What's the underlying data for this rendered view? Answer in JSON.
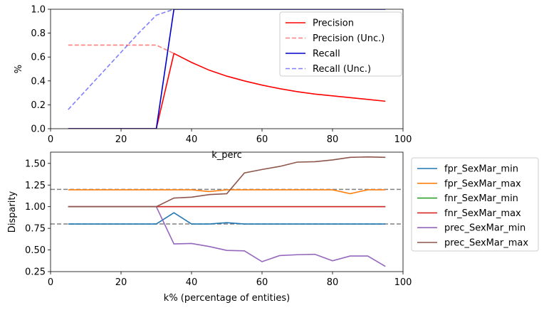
{
  "chart_data": [
    {
      "type": "line",
      "xlabel": "k_perc",
      "ylabel": "%",
      "xlim": [
        0,
        100
      ],
      "ylim": [
        0,
        1.0
      ],
      "xticks": [
        "0",
        "20",
        "40",
        "60",
        "80",
        "100"
      ],
      "yticks": [
        "0.0",
        "0.2",
        "0.4",
        "0.6",
        "0.8",
        "1.0"
      ],
      "legend_position": "top-right",
      "x": [
        5,
        10,
        15,
        20,
        25,
        30,
        35,
        40,
        45,
        50,
        55,
        60,
        65,
        70,
        75,
        80,
        85,
        90,
        95
      ],
      "series": [
        {
          "name": "Precision",
          "color": "#ff0000",
          "dashed": false,
          "opacity": 1,
          "values": [
            0,
            0,
            0,
            0,
            0,
            0,
            0.63,
            0.555,
            0.49,
            0.44,
            0.4,
            0.365,
            0.335,
            0.31,
            0.29,
            0.275,
            0.26,
            0.245,
            0.23
          ]
        },
        {
          "name": "Precision (Unc.)",
          "color": "#ff0000",
          "dashed": true,
          "opacity": 0.5,
          "values": [
            0.7,
            0.7,
            0.7,
            0.7,
            0.7,
            0.7,
            0.63,
            null,
            null,
            null,
            null,
            null,
            null,
            null,
            null,
            null,
            null,
            null,
            null
          ]
        },
        {
          "name": "Recall",
          "color": "#0000cc",
          "dashed": false,
          "opacity": 1,
          "values": [
            0,
            0,
            0,
            0,
            0,
            0,
            1.0,
            1.0,
            1.0,
            1.0,
            1.0,
            1.0,
            1.0,
            1.0,
            1.0,
            1.0,
            1.0,
            1.0,
            1.0
          ]
        },
        {
          "name": "Recall (Unc.)",
          "color": "#0000ff",
          "dashed": true,
          "opacity": 0.5,
          "values": [
            0.16,
            0.32,
            0.48,
            0.64,
            0.8,
            0.95,
            1.0,
            null,
            null,
            null,
            null,
            null,
            null,
            null,
            null,
            null,
            null,
            null,
            null
          ]
        }
      ]
    },
    {
      "type": "line",
      "xlabel": "k% (percentage of entities)",
      "ylabel": "Disparity",
      "xlim": [
        0,
        100
      ],
      "ylim": [
        0.25,
        1.63
      ],
      "xticks": [
        "0",
        "20",
        "40",
        "60",
        "80",
        "100"
      ],
      "yticks": [
        "0.25",
        "0.50",
        "0.75",
        "1.00",
        "1.25",
        "1.50"
      ],
      "legend_position": "outside-right",
      "reference_lines": [
        0.8,
        1.2
      ],
      "x": [
        5,
        10,
        15,
        20,
        25,
        30,
        35,
        40,
        45,
        50,
        55,
        60,
        65,
        70,
        75,
        80,
        85,
        90,
        95
      ],
      "series": [
        {
          "name": "fpr_SexMar_min",
          "color": "#1f77b4",
          "values": [
            0.8,
            0.8,
            0.8,
            0.8,
            0.8,
            0.8,
            0.93,
            0.8,
            0.8,
            0.815,
            0.8,
            0.8,
            0.8,
            0.8,
            0.8,
            0.8,
            0.8,
            0.8,
            0.8
          ]
        },
        {
          "name": "fpr_SexMar_max",
          "color": "#ff7f0e",
          "values": [
            1.195,
            1.195,
            1.195,
            1.195,
            1.195,
            1.195,
            1.195,
            1.195,
            1.175,
            1.195,
            1.195,
            1.195,
            1.195,
            1.195,
            1.195,
            1.195,
            1.15,
            1.195,
            1.195
          ]
        },
        {
          "name": "fnr_SexMar_min",
          "color": "#2ca02c",
          "values": [
            1,
            1,
            1,
            1,
            1,
            1,
            1,
            1,
            1,
            1,
            1,
            1,
            1,
            1,
            1,
            1,
            1,
            1,
            1
          ]
        },
        {
          "name": "fnr_SexMar_max",
          "color": "#d62728",
          "values": [
            1,
            1,
            1,
            1,
            1,
            1,
            1,
            1,
            1,
            1,
            1,
            1,
            1,
            1,
            1,
            1,
            1,
            1,
            1
          ]
        },
        {
          "name": "prec_SexMar_min",
          "color": "#9467bd",
          "values": [
            1.0,
            1.0,
            1.0,
            1.0,
            1.0,
            1.0,
            0.57,
            0.575,
            0.54,
            0.495,
            0.49,
            0.365,
            0.435,
            0.445,
            0.45,
            0.375,
            0.43,
            0.43,
            0.31
          ]
        },
        {
          "name": "prec_SexMar_max",
          "color": "#8c564b",
          "values": [
            1.0,
            1.0,
            1.0,
            1.0,
            1.0,
            1.0,
            1.1,
            1.11,
            1.14,
            1.15,
            1.39,
            1.43,
            1.465,
            1.515,
            1.52,
            1.54,
            1.57,
            1.575,
            1.57
          ]
        }
      ]
    }
  ]
}
